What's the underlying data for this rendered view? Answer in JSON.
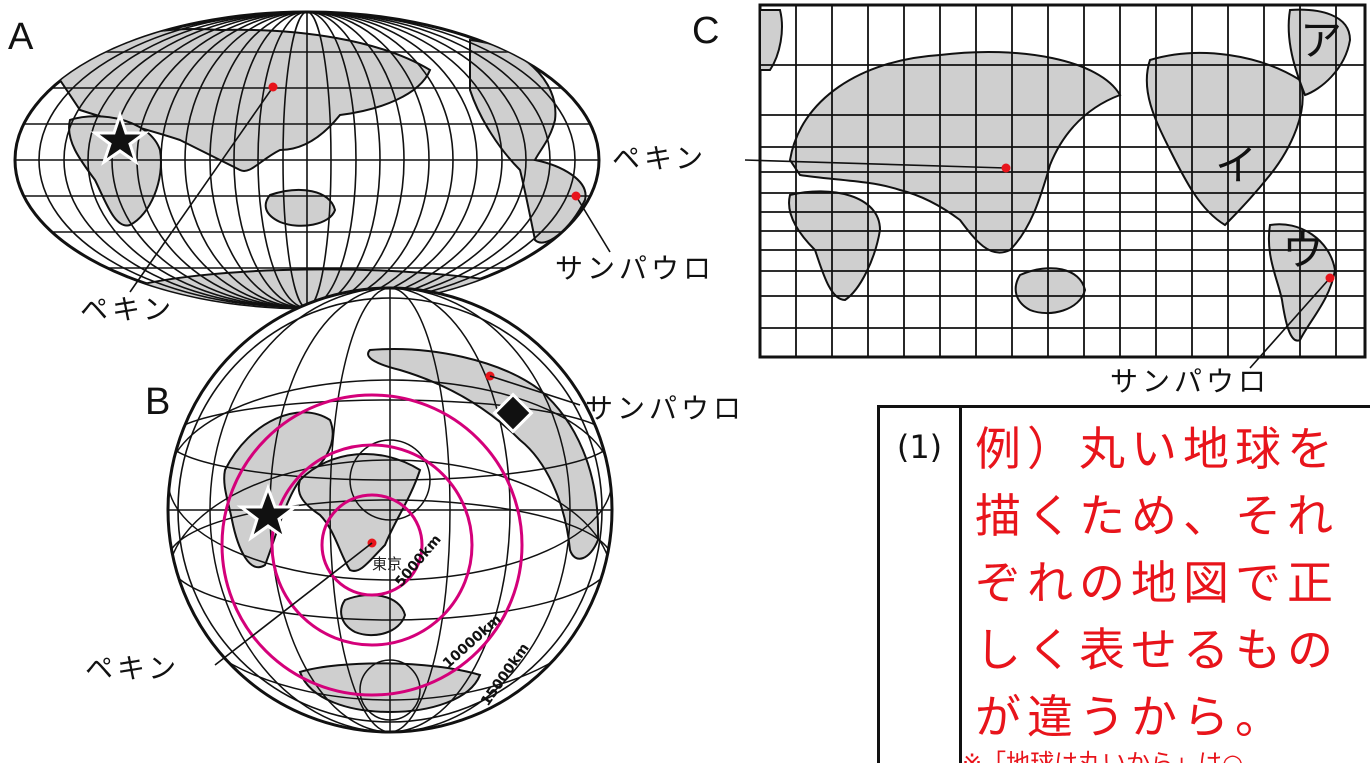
{
  "labels": {
    "map_a": "A",
    "map_b": "B",
    "map_c": "C"
  },
  "cities": {
    "beijing": "ペキン",
    "sao_paulo": "サンパウロ",
    "tokyo": "東京"
  },
  "distance_rings": {
    "r1": "5000km",
    "r2": "10000km",
    "r3": "15000km"
  },
  "map_c_marks": {
    "a": "ア",
    "i": "イ",
    "u": "ウ"
  },
  "answer": {
    "number": "(1)",
    "text": "例）丸い地球を描くため、それぞれの地図で正しく表せるものが違うから。",
    "note": "※「地球は丸いから」は○"
  },
  "colors": {
    "land": "#cfcfcf",
    "outline": "#111111",
    "city_dot": "#e8141b",
    "rings": "#d4007a",
    "answer_text": "#e8141b"
  }
}
